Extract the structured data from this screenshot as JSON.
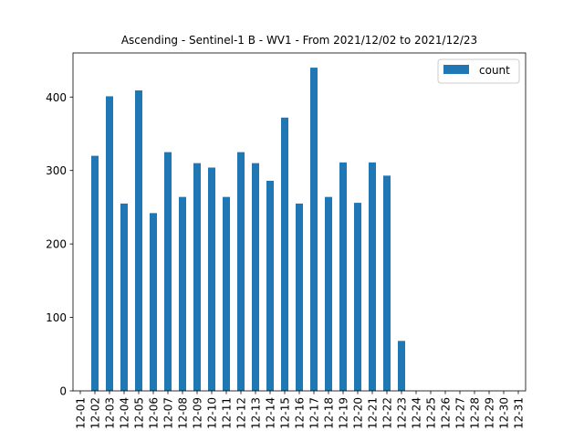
{
  "chart_data": {
    "type": "bar",
    "title": "Ascending - Sentinel-1 B - WV1 - From 2021/12/02 to 2021/12/23",
    "xlabel": "",
    "ylabel": "",
    "categories": [
      "12-01",
      "12-02",
      "12-03",
      "12-04",
      "12-05",
      "12-06",
      "12-07",
      "12-08",
      "12-09",
      "12-10",
      "12-11",
      "12-12",
      "12-13",
      "12-14",
      "12-15",
      "12-16",
      "12-17",
      "12-18",
      "12-19",
      "12-20",
      "12-21",
      "12-22",
      "12-23",
      "12-24",
      "12-25",
      "12-26",
      "12-27",
      "12-28",
      "12-29",
      "12-30",
      "12-31"
    ],
    "series": [
      {
        "name": "count",
        "color": "#1f77b4",
        "values": [
          0,
          320,
          401,
          255,
          409,
          242,
          325,
          264,
          310,
          304,
          264,
          325,
          310,
          286,
          372,
          255,
          440,
          264,
          311,
          256,
          311,
          293,
          68,
          0,
          0,
          0,
          0,
          0,
          0,
          0,
          0
        ]
      }
    ],
    "ylim": [
      0,
      460
    ],
    "yticks": [
      0,
      100,
      200,
      300,
      400
    ],
    "grid": false,
    "legend": {
      "position": "top-right",
      "label": "count"
    }
  }
}
